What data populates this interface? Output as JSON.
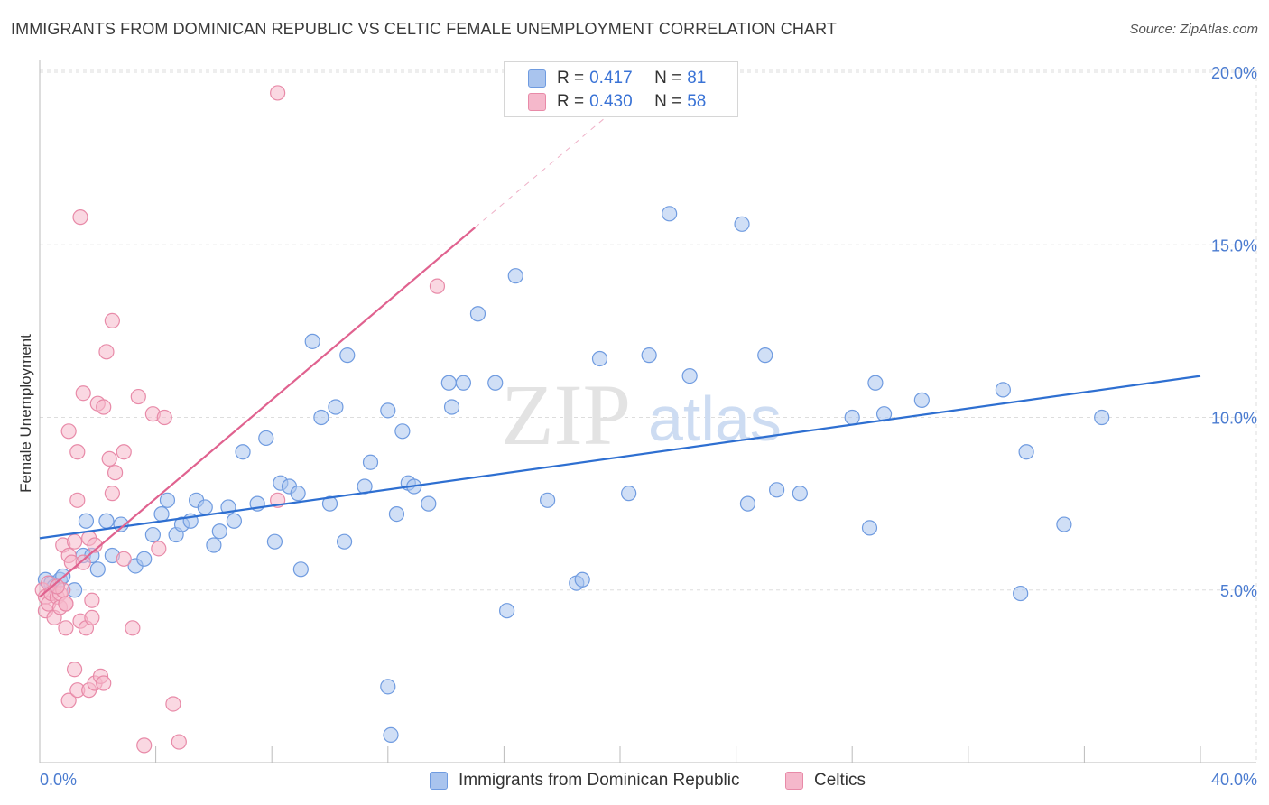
{
  "header": {
    "title": "IMMIGRANTS FROM DOMINICAN REPUBLIC VS CELTIC FEMALE UNEMPLOYMENT CORRELATION CHART",
    "source": "Source: ZipAtlas.com"
  },
  "legend": {
    "rows": [
      {
        "r_label": "R =",
        "r_value": "0.417",
        "n_label": "N =",
        "n_value": "81"
      },
      {
        "r_label": "R =",
        "r_value": "0.430",
        "n_label": "N =",
        "n_value": "58"
      }
    ],
    "bottom": [
      "Immigrants from Dominican Republic",
      "Celtics"
    ]
  },
  "watermark": {
    "zip": "ZIP",
    "atlas": "atlas"
  },
  "colors": {
    "blue_fill": "#a9c4ee",
    "blue_stroke": "#6f9be0",
    "blue_line": "#2e6fd1",
    "pink_fill": "#f5b8cb",
    "pink_stroke": "#e88aa8",
    "pink_line": "#e0628f",
    "tick_text": "#4a7bd0",
    "grid": "#dddddd"
  },
  "chart_data": {
    "type": "scatter",
    "title": "IMMIGRANTS FROM DOMINICAN REPUBLIC VS CELTIC FEMALE UNEMPLOYMENT CORRELATION CHART",
    "xlabel": "",
    "ylabel": "Female Unemployment",
    "xlim": [
      0,
      40
    ],
    "ylim": [
      0,
      20.5
    ],
    "x_tick_labels": [
      "0.0%",
      "40.0%"
    ],
    "y_ticks": [
      5,
      10,
      15,
      20
    ],
    "y_tick_labels": [
      "5.0%",
      "10.0%",
      "15.0%",
      "20.0%"
    ],
    "series": [
      {
        "name": "Immigrants from Dominican Republic",
        "R": 0.417,
        "N": 81,
        "trend": {
          "x": [
            0,
            40
          ],
          "y": [
            6.5,
            11.2
          ],
          "dashed_extension": false
        },
        "points": [
          [
            0.2,
            5.3
          ],
          [
            0.4,
            5.2
          ],
          [
            0.5,
            5.1
          ],
          [
            0.7,
            5.3
          ],
          [
            0.8,
            5.4
          ],
          [
            1.2,
            5.0
          ],
          [
            1.5,
            6.0
          ],
          [
            1.6,
            7.0
          ],
          [
            1.8,
            6.0
          ],
          [
            2.0,
            5.6
          ],
          [
            2.3,
            7.0
          ],
          [
            2.5,
            6.0
          ],
          [
            2.8,
            6.9
          ],
          [
            3.3,
            5.7
          ],
          [
            3.6,
            5.9
          ],
          [
            3.9,
            6.6
          ],
          [
            4.2,
            7.2
          ],
          [
            4.4,
            7.6
          ],
          [
            4.7,
            6.6
          ],
          [
            4.9,
            6.9
          ],
          [
            5.2,
            7.0
          ],
          [
            5.4,
            7.6
          ],
          [
            5.7,
            7.4
          ],
          [
            6.0,
            6.3
          ],
          [
            6.2,
            6.7
          ],
          [
            6.5,
            7.4
          ],
          [
            6.7,
            7.0
          ],
          [
            7.0,
            9.0
          ],
          [
            7.5,
            7.5
          ],
          [
            7.8,
            9.4
          ],
          [
            8.1,
            6.4
          ],
          [
            8.3,
            8.1
          ],
          [
            8.6,
            8.0
          ],
          [
            8.9,
            7.8
          ],
          [
            9.0,
            5.6
          ],
          [
            9.4,
            12.2
          ],
          [
            9.7,
            10.0
          ],
          [
            10.0,
            7.5
          ],
          [
            10.2,
            10.3
          ],
          [
            10.5,
            6.4
          ],
          [
            10.6,
            11.8
          ],
          [
            11.2,
            8.0
          ],
          [
            11.4,
            8.7
          ],
          [
            12.0,
            10.2
          ],
          [
            12.0,
            2.2
          ],
          [
            12.1,
            0.8
          ],
          [
            12.3,
            7.2
          ],
          [
            12.5,
            9.6
          ],
          [
            12.7,
            8.1
          ],
          [
            12.9,
            8.0
          ],
          [
            13.4,
            7.5
          ],
          [
            14.1,
            11.0
          ],
          [
            14.2,
            10.3
          ],
          [
            14.6,
            11.0
          ],
          [
            15.1,
            13.0
          ],
          [
            15.7,
            11.0
          ],
          [
            16.1,
            4.4
          ],
          [
            16.4,
            14.1
          ],
          [
            17.5,
            7.6
          ],
          [
            18.5,
            5.2
          ],
          [
            18.7,
            5.3
          ],
          [
            19.3,
            11.7
          ],
          [
            20.3,
            7.8
          ],
          [
            21.0,
            11.8
          ],
          [
            21.7,
            15.9
          ],
          [
            22.4,
            11.2
          ],
          [
            24.2,
            15.6
          ],
          [
            24.4,
            7.5
          ],
          [
            25.0,
            11.8
          ],
          [
            25.4,
            7.9
          ],
          [
            26.2,
            7.8
          ],
          [
            28.0,
            10.0
          ],
          [
            28.6,
            6.8
          ],
          [
            28.8,
            11.0
          ],
          [
            29.1,
            10.1
          ],
          [
            30.4,
            10.5
          ],
          [
            33.2,
            10.8
          ],
          [
            33.8,
            4.9
          ],
          [
            34.0,
            9.0
          ],
          [
            35.3,
            6.9
          ],
          [
            36.6,
            10.0
          ]
        ]
      },
      {
        "name": "Celtics",
        "R": 0.43,
        "N": 58,
        "trend": {
          "x": [
            0,
            15
          ],
          "y": [
            4.8,
            15.5
          ],
          "dashed_extension": true,
          "dash_to": [
            20.5,
            19.4
          ]
        },
        "points": [
          [
            0.1,
            5.0
          ],
          [
            0.2,
            4.8
          ],
          [
            0.2,
            4.4
          ],
          [
            0.3,
            4.6
          ],
          [
            0.3,
            5.2
          ],
          [
            0.4,
            4.9
          ],
          [
            0.5,
            4.2
          ],
          [
            0.6,
            4.8
          ],
          [
            0.7,
            4.5
          ],
          [
            0.7,
            4.9
          ],
          [
            0.8,
            5.0
          ],
          [
            0.8,
            6.3
          ],
          [
            0.9,
            4.6
          ],
          [
            0.9,
            3.9
          ],
          [
            0.9,
            4.6
          ],
          [
            1.0,
            9.6
          ],
          [
            1.0,
            6.0
          ],
          [
            1.0,
            1.8
          ],
          [
            1.1,
            5.8
          ],
          [
            1.2,
            2.7
          ],
          [
            1.2,
            6.4
          ],
          [
            1.3,
            2.1
          ],
          [
            1.3,
            9.0
          ],
          [
            1.3,
            7.6
          ],
          [
            1.4,
            4.1
          ],
          [
            1.4,
            15.8
          ],
          [
            1.5,
            10.7
          ],
          [
            1.5,
            5.8
          ],
          [
            1.6,
            3.9
          ],
          [
            1.7,
            6.5
          ],
          [
            1.7,
            2.1
          ],
          [
            1.8,
            4.7
          ],
          [
            1.8,
            4.2
          ],
          [
            1.9,
            6.3
          ],
          [
            1.9,
            2.3
          ],
          [
            2.0,
            10.4
          ],
          [
            2.1,
            2.5
          ],
          [
            2.2,
            2.3
          ],
          [
            2.2,
            10.3
          ],
          [
            2.3,
            11.9
          ],
          [
            2.4,
            8.8
          ],
          [
            2.5,
            12.8
          ],
          [
            2.5,
            7.8
          ],
          [
            2.6,
            8.4
          ],
          [
            2.9,
            9.0
          ],
          [
            2.9,
            5.9
          ],
          [
            3.2,
            3.9
          ],
          [
            3.4,
            10.6
          ],
          [
            3.6,
            0.5
          ],
          [
            3.9,
            10.1
          ],
          [
            4.1,
            6.2
          ],
          [
            4.3,
            10.0
          ],
          [
            4.6,
            1.7
          ],
          [
            4.8,
            0.6
          ],
          [
            8.2,
            7.6
          ],
          [
            8.2,
            19.4
          ],
          [
            13.7,
            13.8
          ],
          [
            0.6,
            5.1
          ]
        ]
      }
    ]
  }
}
